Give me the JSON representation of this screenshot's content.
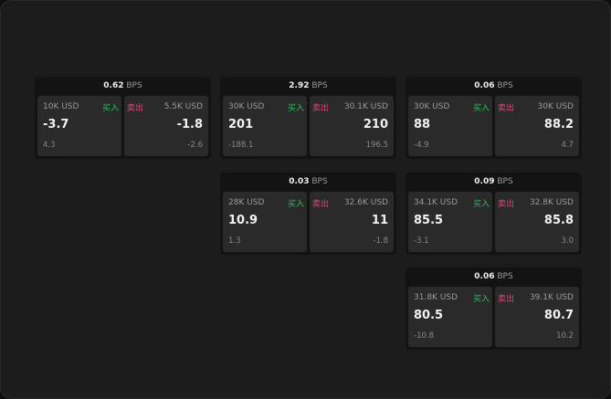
{
  "colors": {
    "buy": "#2fbf5f",
    "sell": "#e0457b"
  },
  "labels": {
    "buy": "买入",
    "sell": "卖出",
    "unit": "BPS"
  },
  "cards": [
    {
      "spread": "0.62",
      "bid": {
        "qty": "10K USD",
        "price": "-3.7",
        "change": "4.3"
      },
      "ask": {
        "qty": "5.5K USD",
        "price": "-1.8",
        "change": "-2.6"
      }
    },
    {
      "spread": "2.92",
      "bid": {
        "qty": "30K USD",
        "price": "201",
        "change": "-188.1"
      },
      "ask": {
        "qty": "30.1K USD",
        "price": "210",
        "change": "196.5"
      }
    },
    {
      "spread": "0.06",
      "bid": {
        "qty": "30K USD",
        "price": "88",
        "change": "-4.9"
      },
      "ask": {
        "qty": "30K USD",
        "price": "88.2",
        "change": "4.7"
      }
    },
    {
      "spread": "0.03",
      "bid": {
        "qty": "28K USD",
        "price": "10.9",
        "change": "1.3"
      },
      "ask": {
        "qty": "32.6K USD",
        "price": "11",
        "change": "-1.8"
      }
    },
    {
      "spread": "0.09",
      "bid": {
        "qty": "34.1K USD",
        "price": "85.5",
        "change": "-3.1"
      },
      "ask": {
        "qty": "32.8K USD",
        "price": "85.8",
        "change": "3.0"
      }
    },
    {
      "spread": "0.06",
      "bid": {
        "qty": "31.8K USD",
        "price": "80.5",
        "change": "-10.8"
      },
      "ask": {
        "qty": "39.1K USD",
        "price": "80.7",
        "change": "10.2"
      }
    }
  ]
}
